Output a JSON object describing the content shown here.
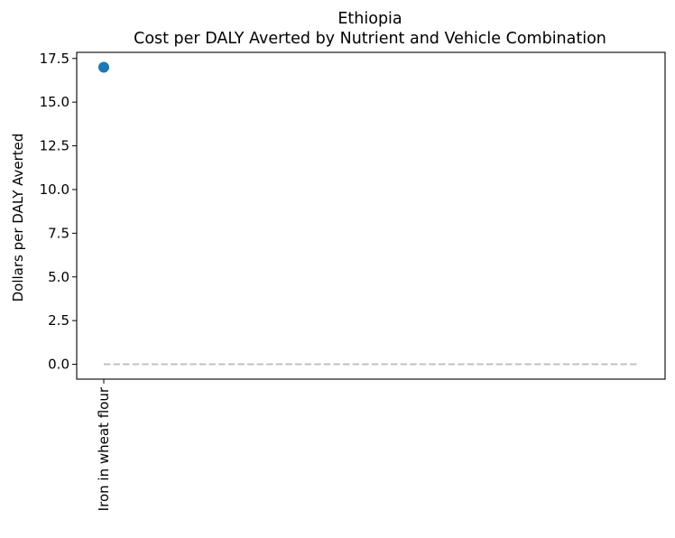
{
  "chart_data": {
    "type": "scatter",
    "title": "Ethiopia",
    "subtitle": "Cost per DALY Averted by Nutrient and Vehicle Combination",
    "xlabel": "",
    "ylabel": "Dollars per DALY Averted",
    "categories": [
      "Iron in wheat flour"
    ],
    "series": [
      {
        "values": [
          17.0
        ],
        "color": "#1f77b4"
      }
    ],
    "reference_line": {
      "y": 0.0,
      "style": "dashed",
      "color": "#c0c0c0"
    },
    "ylim": [
      -0.85,
      17.85
    ],
    "yticks": [
      0.0,
      2.5,
      5.0,
      7.5,
      10.0,
      12.5,
      15.0,
      17.5
    ],
    "ytick_labels": [
      "0.0",
      "2.5",
      "5.0",
      "7.5",
      "10.0",
      "12.5",
      "15.0",
      "17.5"
    ],
    "grid": false,
    "legend": "none"
  }
}
